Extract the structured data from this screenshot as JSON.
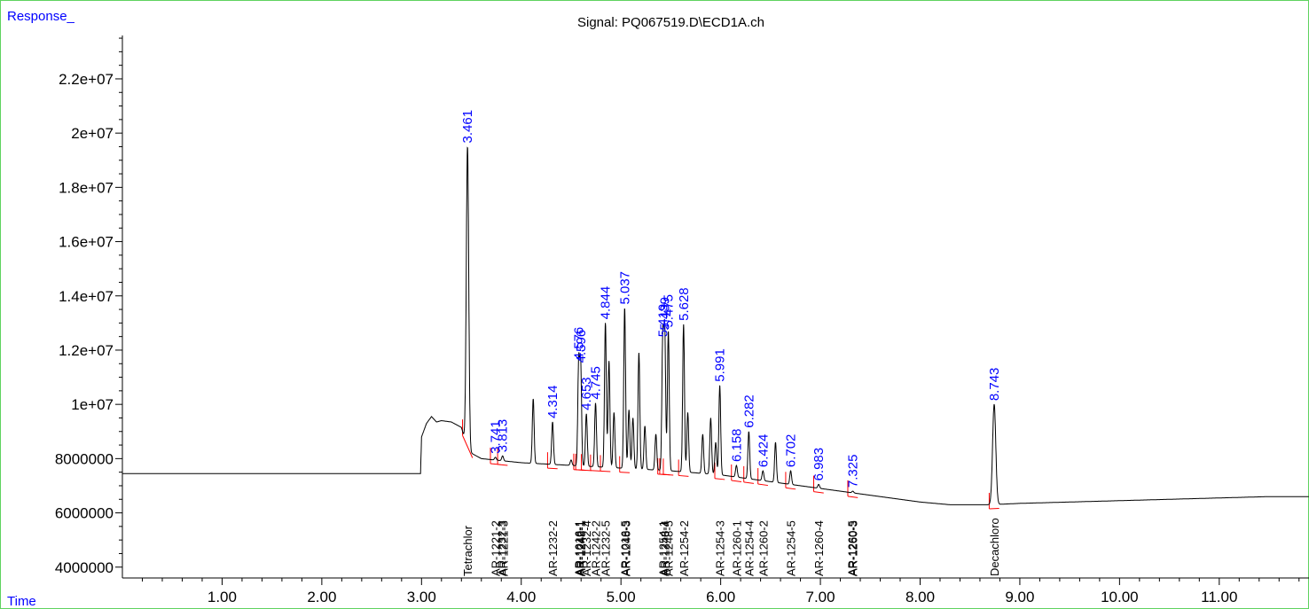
{
  "chart_data": {
    "type": "line",
    "title": "Signal: PQ067519.D\\ECD1A.ch",
    "ylabel": "Response_",
    "xlabel": "Time",
    "xlim": [
      0.0,
      11.9
    ],
    "ylim": [
      3600000,
      23600000
    ],
    "x_ticks": [
      "1.00",
      "2.00",
      "3.00",
      "4.00",
      "5.00",
      "6.00",
      "7.00",
      "8.00",
      "9.00",
      "10.00",
      "11.00"
    ],
    "x_tick_values": [
      1,
      2,
      3,
      4,
      5,
      6,
      7,
      8,
      9,
      10,
      11
    ],
    "y_ticks": [
      "4000000",
      "6000000",
      "8000000",
      "1e+07",
      "1.2e+07",
      "1.4e+07",
      "1.6e+07",
      "1.8e+07",
      "2e+07",
      "2.2e+07"
    ],
    "y_tick_values": [
      4000000,
      6000000,
      8000000,
      10000000,
      12000000,
      14000000,
      16000000,
      18000000,
      20000000,
      22000000
    ],
    "signal": {
      "name": "ECD1A",
      "points": [
        [
          0.0,
          7450000
        ],
        [
          2.99,
          7450000
        ],
        [
          3.0,
          8800000
        ],
        [
          3.05,
          9300000
        ],
        [
          3.1,
          9550000
        ],
        [
          3.15,
          9350000
        ],
        [
          3.2,
          9400000
        ],
        [
          3.3,
          9350000
        ],
        [
          3.4,
          9150000
        ],
        [
          3.45,
          8500000
        ],
        [
          3.5,
          8200000
        ],
        [
          3.6,
          8000000
        ],
        [
          4.0,
          7850000
        ],
        [
          4.5,
          7750000
        ],
        [
          5.0,
          7650000
        ],
        [
          5.5,
          7550000
        ],
        [
          6.0,
          7400000
        ],
        [
          6.5,
          7150000
        ],
        [
          7.0,
          6900000
        ],
        [
          7.5,
          6650000
        ],
        [
          8.0,
          6400000
        ],
        [
          8.3,
          6300000
        ],
        [
          8.7,
          6300000
        ],
        [
          9.0,
          6350000
        ],
        [
          9.5,
          6400000
        ],
        [
          10.0,
          6450000
        ],
        [
          10.5,
          6500000
        ],
        [
          11.0,
          6550000
        ],
        [
          11.5,
          6600000
        ],
        [
          11.9,
          6600000
        ]
      ]
    },
    "peaks": [
      {
        "rt": 3.461,
        "height": 19500000,
        "label": "3.461"
      },
      {
        "rt": 3.741,
        "height": 8050000,
        "label": "3.741"
      },
      {
        "rt": 3.813,
        "height": 8100000,
        "label": "3.813"
      },
      {
        "rt": 4.12,
        "height": 10200000,
        "label": ""
      },
      {
        "rt": 4.314,
        "height": 9350000,
        "label": "4.314"
      },
      {
        "rt": 4.5,
        "height": 7950000,
        "label": ""
      },
      {
        "rt": 4.576,
        "height": 11500000,
        "label": "4.576"
      },
      {
        "rt": 4.596,
        "height": 11400000,
        "label": "4.596"
      },
      {
        "rt": 4.653,
        "height": 9650000,
        "label": "4.653"
      },
      {
        "rt": 4.745,
        "height": 10050000,
        "label": "4.745"
      },
      {
        "rt": 4.844,
        "height": 13000000,
        "label": "4.844"
      },
      {
        "rt": 4.88,
        "height": 11600000,
        "label": ""
      },
      {
        "rt": 4.93,
        "height": 9700000,
        "label": ""
      },
      {
        "rt": 5.037,
        "height": 13550000,
        "label": "5.037"
      },
      {
        "rt": 5.08,
        "height": 9800000,
        "label": ""
      },
      {
        "rt": 5.12,
        "height": 9500000,
        "label": ""
      },
      {
        "rt": 5.18,
        "height": 11900000,
        "label": ""
      },
      {
        "rt": 5.24,
        "height": 9200000,
        "label": ""
      },
      {
        "rt": 5.35,
        "height": 8900000,
        "label": ""
      },
      {
        "rt": 5.419,
        "height": 12350000,
        "label": "5.419"
      },
      {
        "rt": 5.439,
        "height": 12600000,
        "label": "5.439"
      },
      {
        "rt": 5.475,
        "height": 12700000,
        "label": "5.475"
      },
      {
        "rt": 5.628,
        "height": 12950000,
        "label": "5.628"
      },
      {
        "rt": 5.67,
        "height": 9700000,
        "label": ""
      },
      {
        "rt": 5.82,
        "height": 8900000,
        "label": ""
      },
      {
        "rt": 5.9,
        "height": 9500000,
        "label": ""
      },
      {
        "rt": 5.95,
        "height": 8600000,
        "label": ""
      },
      {
        "rt": 5.991,
        "height": 10700000,
        "label": "5.991"
      },
      {
        "rt": 6.158,
        "height": 7750000,
        "label": "6.158"
      },
      {
        "rt": 6.282,
        "height": 9000000,
        "label": "6.282"
      },
      {
        "rt": 6.424,
        "height": 7550000,
        "label": "6.424"
      },
      {
        "rt": 6.55,
        "height": 8600000,
        "label": ""
      },
      {
        "rt": 6.702,
        "height": 7550000,
        "label": "6.702"
      },
      {
        "rt": 6.983,
        "height": 7050000,
        "label": "6.983"
      },
      {
        "rt": 7.325,
        "height": 6800000,
        "label": "7.325"
      },
      {
        "rt": 8.743,
        "height": 10000000,
        "label": "8.743"
      }
    ],
    "compound_labels": [
      {
        "rt": 3.461,
        "text": "Tetrachlor"
      },
      {
        "rt": 3.741,
        "text": "AR-1221-2"
      },
      {
        "rt": 3.8,
        "text": "AR-1232-3"
      },
      {
        "rt": 3.82,
        "text": "AR-1221-3"
      },
      {
        "rt": 4.314,
        "text": "AR-1232-2"
      },
      {
        "rt": 4.576,
        "text": "AR-1016-1"
      },
      {
        "rt": 4.586,
        "text": "AR-1242-1"
      },
      {
        "rt": 4.596,
        "text": "AR-1248-1"
      },
      {
        "rt": 4.653,
        "text": "AR-1232-4"
      },
      {
        "rt": 4.745,
        "text": "AR-1242-2"
      },
      {
        "rt": 4.844,
        "text": "AR-1232-5"
      },
      {
        "rt": 5.037,
        "text": "AR-1016-5"
      },
      {
        "rt": 5.047,
        "text": "AR-1248-3"
      },
      {
        "rt": 5.419,
        "text": "AR-1254-1"
      },
      {
        "rt": 5.439,
        "text": "AR-1248-4"
      },
      {
        "rt": 5.475,
        "text": "AR-1248-5"
      },
      {
        "rt": 5.628,
        "text": "AR-1254-2"
      },
      {
        "rt": 5.991,
        "text": "AR-1254-3"
      },
      {
        "rt": 6.158,
        "text": "AR-1260-1"
      },
      {
        "rt": 6.282,
        "text": "AR-1254-4"
      },
      {
        "rt": 6.424,
        "text": "AR-1260-2"
      },
      {
        "rt": 6.702,
        "text": "AR-1254-5"
      },
      {
        "rt": 6.983,
        "text": "AR-1260-4"
      },
      {
        "rt": 7.315,
        "text": "AR-1260-5"
      },
      {
        "rt": 7.325,
        "text": "AR-1260-3"
      },
      {
        "rt": 8.743,
        "text": "Decachloro"
      }
    ],
    "grid": false,
    "colors": {
      "frame": "#5fd35f",
      "signal": "#000000",
      "peak_label": "#0000ff",
      "baseline": "#ff0000",
      "axis_title": "#0000ff",
      "compound_label": "#000000"
    }
  }
}
